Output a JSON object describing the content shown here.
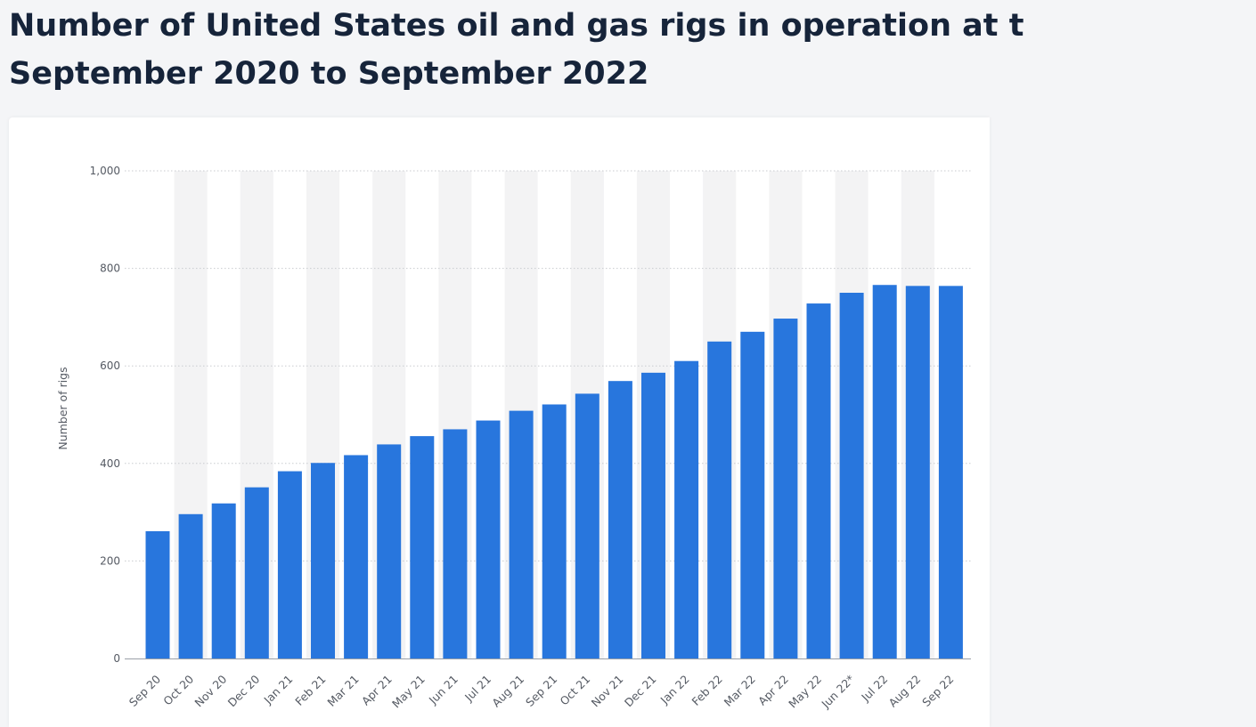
{
  "title": {
    "line1": "Number of United States oil and gas rigs in operation at t",
    "line2": "September 2020 to September 2022"
  },
  "colors": {
    "bar": "#2876dd",
    "stripe": "#f3f3f4",
    "grid": "#c9cbcf",
    "title": "#16243a"
  },
  "chart_data": {
    "type": "bar",
    "title": "Number of United States oil and gas rigs in operation at t September 2020 to September 2022",
    "xlabel": "",
    "ylabel": "Number of rigs",
    "ylim": [
      0,
      1000
    ],
    "yticks": [
      0,
      200,
      400,
      600,
      800,
      1000
    ],
    "ytick_labels": [
      "0",
      "200",
      "400",
      "600",
      "800",
      "1,000"
    ],
    "grid": true,
    "categories": [
      "Sep 20",
      "Oct 20",
      "Nov 20",
      "Dec 20",
      "Jan 21",
      "Feb 21",
      "Mar 21",
      "Apr 21",
      "May 21",
      "Jun 21",
      "Jul 21",
      "Aug 21",
      "Sep 21",
      "Oct 21",
      "Nov 21",
      "Dec 21",
      "Jan 22",
      "Feb 22",
      "Mar 22",
      "Apr 22",
      "May 22",
      "Jun 22*",
      "Jul 22",
      "Aug 22",
      "Sep 22"
    ],
    "values": [
      261,
      296,
      318,
      351,
      384,
      401,
      417,
      439,
      456,
      470,
      488,
      508,
      521,
      543,
      569,
      586,
      610,
      650,
      670,
      697,
      728,
      750,
      766,
      764,
      764
    ]
  }
}
